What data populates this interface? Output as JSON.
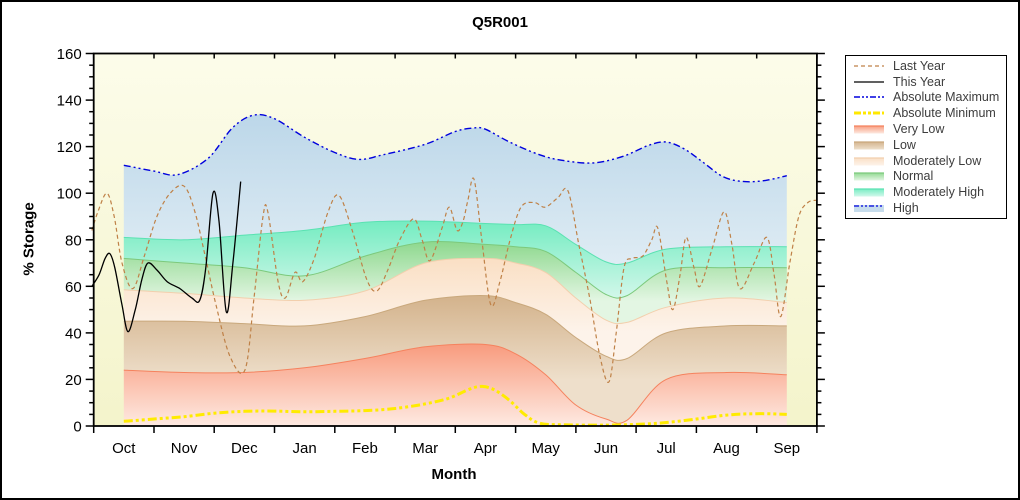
{
  "title": "Q5R001",
  "axes": {
    "x": {
      "label": "Month",
      "ticks": [
        "Oct",
        "Nov",
        "Dec",
        "Jan",
        "Feb",
        "Mar",
        "Apr",
        "May",
        "Jun",
        "Jul",
        "Aug",
        "Sep"
      ]
    },
    "y": {
      "label": "% Storage",
      "ticks": [
        0,
        20,
        40,
        60,
        80,
        100,
        120,
        140,
        160
      ],
      "min": 0,
      "max": 160,
      "minor_step": 5
    }
  },
  "legend": {
    "entries": [
      {
        "label": "Last Year",
        "key": "last_year",
        "swatch": {
          "type": "line",
          "color": "#bf8147",
          "dash": "4 3",
          "width": 1.2
        }
      },
      {
        "label": "This Year",
        "key": "this_year",
        "swatch": {
          "type": "line",
          "color": "#000000",
          "dash": "",
          "width": 1.3
        }
      },
      {
        "label": "Absolute Maximum",
        "key": "abs_max",
        "swatch": {
          "type": "line",
          "color": "#0000dd",
          "dash": "6 2 2 2 2 2",
          "width": 1.5
        }
      },
      {
        "label": "Absolute Minimum",
        "key": "abs_min",
        "swatch": {
          "type": "line",
          "color": "#ffe800",
          "dash": "7 2 3 2 3 2",
          "width": 3
        }
      },
      {
        "label": "Very Low",
        "key": "very_low",
        "swatch": {
          "type": "band",
          "from": "#f8997b",
          "to": "#fde9e0",
          "edge": "#f5825e"
        }
      },
      {
        "label": "Low",
        "key": "low",
        "swatch": {
          "type": "band",
          "from": "#d3b28b",
          "to": "#eedfcb",
          "edge": "#c9a87c"
        }
      },
      {
        "label": "Moderately Low",
        "key": "mod_low",
        "swatch": {
          "type": "band",
          "from": "#fadfc4",
          "to": "#fdf3ea",
          "edge": "#f2cfad"
        }
      },
      {
        "label": "Normal",
        "key": "normal",
        "swatch": {
          "type": "band",
          "from": "#8ed88e",
          "to": "#e3f6e3",
          "edge": "#7cc97c"
        }
      },
      {
        "label": "Moderately High",
        "key": "mod_high",
        "swatch": {
          "type": "band",
          "from": "#74ecc1",
          "to": "#d2f8eb",
          "edge": "#5ae2b2"
        }
      },
      {
        "label": "High",
        "key": "high",
        "swatch": {
          "type": "band-line",
          "fill": "#c6dcec",
          "color": "#0000dd",
          "dash": "5 2 2 2 2 2"
        }
      }
    ]
  },
  "chart_data": {
    "type": "area",
    "title": "Q5R001",
    "xlabel": "Month",
    "ylabel": "% Storage",
    "ylim": [
      0,
      160
    ],
    "x_categories": [
      "Oct",
      "Nov",
      "Dec",
      "Jan",
      "Feb",
      "Mar",
      "Apr",
      "May",
      "Jun",
      "Jul",
      "Aug",
      "Sep"
    ],
    "x_units": "fractional months, 0 = Oct center, 11 = Sep center",
    "plot_background": [
      "#fcfcea",
      "#f4f4cb"
    ],
    "boundaries": {
      "red_top": [
        [
          0,
          24
        ],
        [
          1,
          23
        ],
        [
          2,
          23
        ],
        [
          3,
          25
        ],
        [
          4,
          29
        ],
        [
          5,
          34
        ],
        [
          6,
          35
        ],
        [
          6.5,
          31
        ],
        [
          7,
          22
        ],
        [
          7.5,
          9
        ],
        [
          8,
          3
        ],
        [
          8.35,
          2.5
        ],
        [
          9,
          20
        ],
        [
          10,
          23
        ],
        [
          11,
          22
        ]
      ],
      "brown_top": [
        [
          0,
          45
        ],
        [
          1,
          45
        ],
        [
          2,
          44
        ],
        [
          3,
          43
        ],
        [
          4,
          47
        ],
        [
          5,
          54
        ],
        [
          6,
          56
        ],
        [
          6.5,
          53
        ],
        [
          7,
          48
        ],
        [
          7.5,
          38
        ],
        [
          8,
          30
        ],
        [
          8.35,
          29
        ],
        [
          9,
          40
        ],
        [
          10,
          43
        ],
        [
          11,
          43
        ]
      ],
      "peach_top": [
        [
          0,
          58.5
        ],
        [
          1,
          57
        ],
        [
          2,
          55
        ],
        [
          3,
          54
        ],
        [
          4,
          58
        ],
        [
          5,
          70
        ],
        [
          6,
          72
        ],
        [
          6.5,
          70
        ],
        [
          7,
          66
        ],
        [
          7.5,
          55
        ],
        [
          8,
          45.5
        ],
        [
          8.35,
          44.5
        ],
        [
          9,
          51
        ],
        [
          10,
          55
        ],
        [
          11,
          53
        ]
      ],
      "green_top": [
        [
          0,
          72
        ],
        [
          1,
          70
        ],
        [
          2,
          68
        ],
        [
          3,
          64.5
        ],
        [
          4,
          73
        ],
        [
          5,
          79
        ],
        [
          6,
          78
        ],
        [
          6.5,
          77
        ],
        [
          7,
          75
        ],
        [
          7.5,
          66
        ],
        [
          8,
          56.5
        ],
        [
          8.35,
          56
        ],
        [
          9,
          67
        ],
        [
          10,
          68
        ],
        [
          11,
          68
        ]
      ],
      "teal_top": [
        [
          0,
          81
        ],
        [
          1,
          80
        ],
        [
          2,
          82
        ],
        [
          3,
          84
        ],
        [
          4,
          87.5
        ],
        [
          5,
          88
        ],
        [
          6,
          87
        ],
        [
          6.5,
          86.5
        ],
        [
          7,
          86
        ],
        [
          7.5,
          78
        ],
        [
          8,
          70.5
        ],
        [
          8.35,
          70
        ],
        [
          9,
          76
        ],
        [
          10,
          77
        ],
        [
          11,
          77
        ]
      ]
    },
    "bands": [
      {
        "name": "Very Low",
        "key": "very_low",
        "upper": "red_top",
        "lower": "zero",
        "from": "#f8997b",
        "to": "#feeae2",
        "edge": "#f5825e",
        "grad_top": 340,
        "grad_bottom": 424
      },
      {
        "name": "Low",
        "key": "low",
        "upper": "brown_top",
        "lower": "red_top",
        "from": "#d3b28b",
        "to": "#eedfcb",
        "edge": "#c9a87c",
        "grad_top": 293,
        "grad_bottom": 378
      },
      {
        "name": "Moderately Low",
        "key": "mod_low",
        "upper": "peach_top",
        "lower": "brown_top",
        "from": "#fadfc4",
        "to": "#fdf3ea",
        "edge": "#f2cfad",
        "grad_top": 256,
        "grad_bottom": 330
      },
      {
        "name": "Normal",
        "key": "normal",
        "upper": "green_top",
        "lower": "peach_top",
        "from": "#8ed88e",
        "to": "#e3f6e3",
        "edge": "#7cc97c",
        "grad_top": 240,
        "grad_bottom": 299
      },
      {
        "name": "Moderately High",
        "key": "mod_high",
        "upper": "teal_top",
        "lower": "green_top",
        "from": "#74ecc1",
        "to": "#d0f7e9",
        "edge": "#5ae2b2",
        "grad_top": 219,
        "grad_bottom": 294
      },
      {
        "name": "High",
        "key": "high",
        "upper": "abs_max",
        "lower": "teal_top",
        "from": "#bcd7e9",
        "to": "#dfecf4",
        "edge": "",
        "grad_top": 113,
        "grad_bottom": 262
      }
    ],
    "lines": [
      {
        "name": "Absolute Maximum",
        "key": "abs_max",
        "color": "#0000dd",
        "width": 1.4,
        "dash": "7 3 2 3 2 3",
        "points": [
          [
            0,
            112
          ],
          [
            0.5,
            109.5
          ],
          [
            0.9,
            108
          ],
          [
            1.4,
            115
          ],
          [
            1.8,
            128
          ],
          [
            2.15,
            133.5
          ],
          [
            2.5,
            132
          ],
          [
            3,
            124
          ],
          [
            3.5,
            117.5
          ],
          [
            3.9,
            114.5
          ],
          [
            4.3,
            116.5
          ],
          [
            5,
            121
          ],
          [
            5.5,
            126.5
          ],
          [
            5.8,
            128
          ],
          [
            6,
            127.5
          ],
          [
            6.4,
            122
          ],
          [
            6.9,
            116.5
          ],
          [
            7.3,
            114
          ],
          [
            7.8,
            113
          ],
          [
            8.3,
            116
          ],
          [
            8.7,
            120.5
          ],
          [
            9,
            122
          ],
          [
            9.3,
            119
          ],
          [
            9.6,
            113.5
          ],
          [
            9.95,
            107
          ],
          [
            10.3,
            105
          ],
          [
            10.65,
            105.5
          ],
          [
            11,
            107.5
          ]
        ]
      },
      {
        "name": "Absolute Minimum",
        "key": "abs_min",
        "color": "#ffeb00",
        "width": 3,
        "dash": "9 3 3 3 3 3",
        "points": [
          [
            0,
            2
          ],
          [
            0.5,
            3
          ],
          [
            1,
            4
          ],
          [
            1.5,
            5.5
          ],
          [
            2,
            6.3
          ],
          [
            2.5,
            6.4
          ],
          [
            3,
            6.1
          ],
          [
            3.5,
            6.3
          ],
          [
            4,
            6.6
          ],
          [
            4.5,
            7.5
          ],
          [
            5,
            9.5
          ],
          [
            5.4,
            12
          ],
          [
            5.75,
            16
          ],
          [
            5.95,
            17
          ],
          [
            6.15,
            15.5
          ],
          [
            6.4,
            11
          ],
          [
            6.65,
            5
          ],
          [
            6.9,
            1.2
          ],
          [
            7.3,
            0.5
          ],
          [
            8,
            0.4
          ],
          [
            8.6,
            0.8
          ],
          [
            9,
            1.5
          ],
          [
            9.5,
            3
          ],
          [
            10,
            4.7
          ],
          [
            10.5,
            5.3
          ],
          [
            11,
            5
          ]
        ]
      },
      {
        "name": "Last Year",
        "key": "last_year",
        "color": "#bf8147",
        "width": 1.2,
        "dash": "4 3",
        "points": [
          [
            -0.53,
            84
          ],
          [
            -0.43,
            92
          ],
          [
            -0.28,
            100
          ],
          [
            -0.16,
            90
          ],
          [
            -0.03,
            70
          ],
          [
            0.15,
            59
          ],
          [
            0.34,
            73
          ],
          [
            0.55,
            90
          ],
          [
            0.77,
            100
          ],
          [
            1,
            103
          ],
          [
            1.18,
            92
          ],
          [
            1.35,
            73
          ],
          [
            1.53,
            52
          ],
          [
            1.76,
            30
          ],
          [
            2.01,
            24
          ],
          [
            2.16,
            55
          ],
          [
            2.31,
            90
          ],
          [
            2.39,
            92
          ],
          [
            2.56,
            62
          ],
          [
            2.68,
            55
          ],
          [
            2.84,
            66
          ],
          [
            2.97,
            62
          ],
          [
            3.16,
            72
          ],
          [
            3.39,
            92
          ],
          [
            3.57,
            99
          ],
          [
            3.79,
            84
          ],
          [
            4.03,
            63
          ],
          [
            4.2,
            58
          ],
          [
            4.38,
            67
          ],
          [
            4.58,
            80
          ],
          [
            4.81,
            89
          ],
          [
            4.95,
            80
          ],
          [
            5.08,
            71
          ],
          [
            5.28,
            85
          ],
          [
            5.4,
            94
          ],
          [
            5.53,
            84
          ],
          [
            5.63,
            88
          ],
          [
            5.71,
            97
          ],
          [
            5.81,
            106
          ],
          [
            5.94,
            80
          ],
          [
            6.09,
            52
          ],
          [
            6.24,
            62
          ],
          [
            6.41,
            80
          ],
          [
            6.59,
            94
          ],
          [
            6.81,
            96
          ],
          [
            6.99,
            94
          ],
          [
            7.2,
            98
          ],
          [
            7.37,
            101
          ],
          [
            7.55,
            78
          ],
          [
            7.73,
            55
          ],
          [
            7.9,
            30
          ],
          [
            8.05,
            19
          ],
          [
            8.17,
            40
          ],
          [
            8.3,
            68
          ],
          [
            8.43,
            72
          ],
          [
            8.61,
            73
          ],
          [
            8.76,
            80
          ],
          [
            8.86,
            85
          ],
          [
            9.01,
            62
          ],
          [
            9.11,
            50
          ],
          [
            9.23,
            65
          ],
          [
            9.33,
            81
          ],
          [
            9.46,
            68
          ],
          [
            9.56,
            60
          ],
          [
            9.76,
            76
          ],
          [
            9.96,
            92
          ],
          [
            10.09,
            78
          ],
          [
            10.22,
            59
          ],
          [
            10.46,
            70
          ],
          [
            10.67,
            81
          ],
          [
            10.79,
            65
          ],
          [
            10.9,
            47
          ],
          [
            11.05,
            70
          ],
          [
            11.2,
            90
          ],
          [
            11.35,
            96
          ],
          [
            11.5,
            97
          ]
        ]
      },
      {
        "name": "This Year",
        "key": "this_year",
        "color": "#000000",
        "width": 1.3,
        "dash": "",
        "points": [
          [
            -0.53,
            60
          ],
          [
            -0.41,
            65
          ],
          [
            -0.31,
            72
          ],
          [
            -0.23,
            74
          ],
          [
            -0.15,
            68
          ],
          [
            -0.03,
            52
          ],
          [
            0.07,
            40.5
          ],
          [
            0.19,
            50
          ],
          [
            0.3,
            63
          ],
          [
            0.4,
            70
          ],
          [
            0.55,
            67
          ],
          [
            0.72,
            62
          ],
          [
            0.93,
            59
          ],
          [
            1.13,
            55
          ],
          [
            1.26,
            54
          ],
          [
            1.36,
            68
          ],
          [
            1.48,
            100
          ],
          [
            1.58,
            88
          ],
          [
            1.7,
            49
          ],
          [
            1.81,
            70
          ],
          [
            1.94,
            105
          ]
        ]
      }
    ]
  }
}
